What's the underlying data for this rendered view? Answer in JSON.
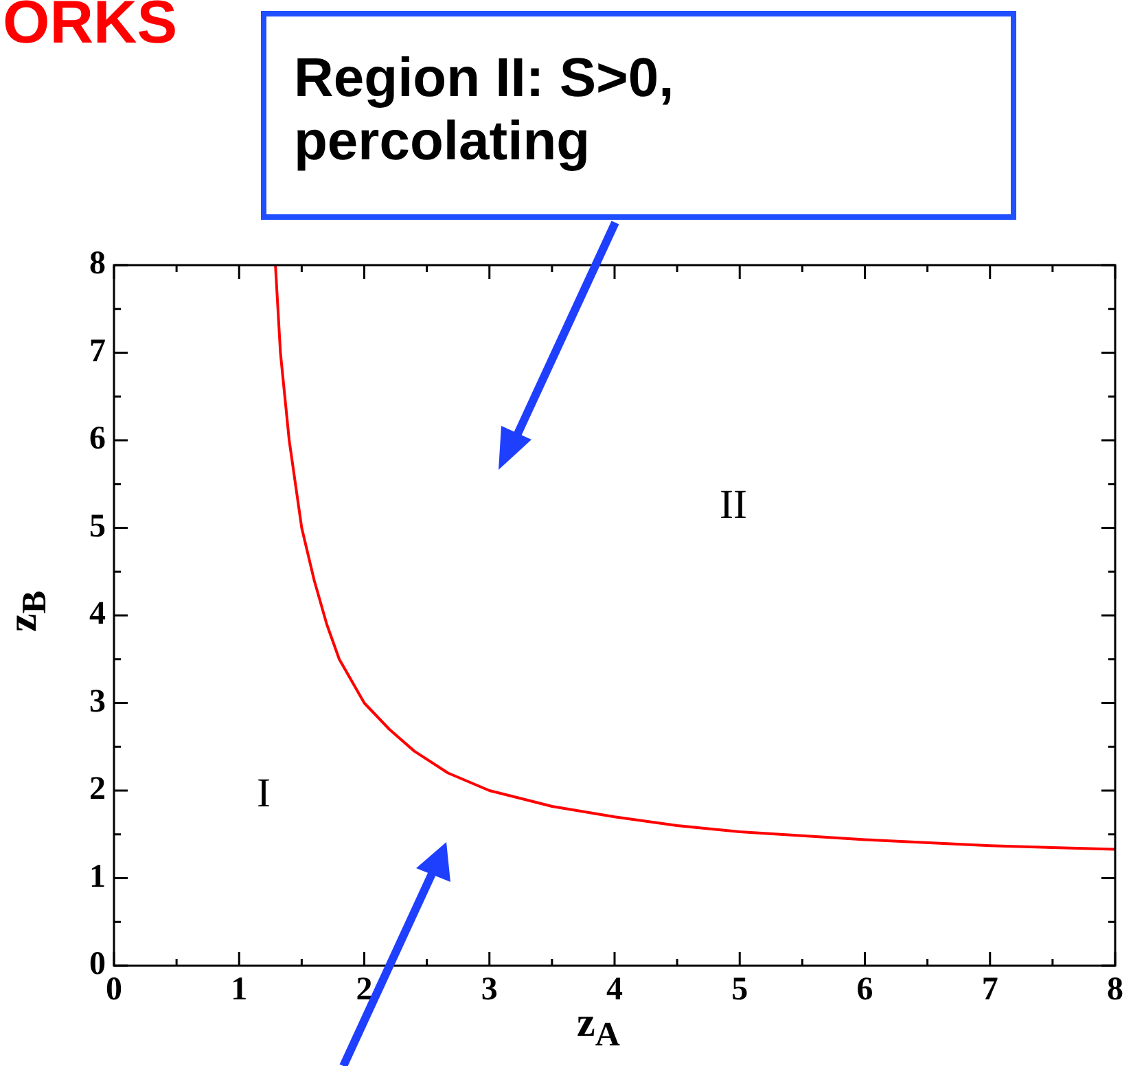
{
  "chart_data": {
    "type": "line",
    "xlabel": "z$_{A}$",
    "ylabel": "z$_{B}$",
    "xlim": [
      0,
      8
    ],
    "ylim": [
      0,
      8
    ],
    "xticks": [
      0,
      1,
      2,
      3,
      4,
      5,
      6,
      7,
      8
    ],
    "yticks": [
      0,
      1,
      2,
      3,
      4,
      5,
      6,
      7,
      8
    ],
    "marker": "none",
    "legend": false,
    "series": [
      {
        "color": "#ff0000",
        "x": [
          1.29,
          1.33,
          1.4,
          1.5,
          1.6,
          1.7,
          1.8,
          2,
          2.2,
          2.4,
          2.67,
          3,
          3.5,
          4,
          4.5,
          5,
          6,
          7,
          8
        ],
        "values": [
          8,
          7,
          6,
          5,
          4.4,
          3.9,
          3.5,
          3,
          2.7,
          2.45,
          2.2,
          2,
          1.82,
          1.7,
          1.6,
          1.53,
          1.44,
          1.37,
          1.33
        ]
      }
    ],
    "annotations": [
      "ORKS",
      "Region II: S>0, percolating",
      "I",
      "II"
    ]
  }
}
